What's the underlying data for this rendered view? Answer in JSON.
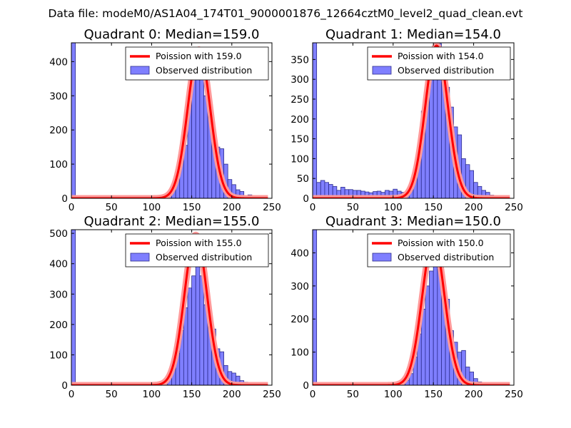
{
  "figure_title": "Data file: modeM0/AS1A04_174T01_9000001876_12664cztM0_level2_quad_clean.evt",
  "colors": {
    "bar_fill": "#7f7fff",
    "bar_stroke": "#2c2c8c",
    "poisson_line": "#ff0000",
    "poisson_glow": "#ff9a9a",
    "axes": "#000000"
  },
  "chart_data": [
    {
      "type": "bar",
      "panel": "Quadrant 0",
      "title": "Quadrant 0: Median=159.0",
      "median": 159.0,
      "xlim": [
        0,
        250
      ],
      "ylim": [
        0,
        455
      ],
      "xticks": [
        0,
        50,
        100,
        150,
        200,
        250
      ],
      "yticks": [
        0,
        100,
        200,
        300,
        400
      ],
      "bin_width": 5,
      "bins": [
        {
          "x": 0,
          "count": 455
        },
        {
          "x": 85,
          "count": 3
        },
        {
          "x": 90,
          "count": 5
        },
        {
          "x": 95,
          "count": 7
        },
        {
          "x": 100,
          "count": 4
        },
        {
          "x": 105,
          "count": 6
        },
        {
          "x": 110,
          "count": 5
        },
        {
          "x": 115,
          "count": 5
        },
        {
          "x": 120,
          "count": 8
        },
        {
          "x": 125,
          "count": 22
        },
        {
          "x": 130,
          "count": 75
        },
        {
          "x": 135,
          "count": 135
        },
        {
          "x": 140,
          "count": 155
        },
        {
          "x": 145,
          "count": 285
        },
        {
          "x": 150,
          "count": 360
        },
        {
          "x": 155,
          "count": 410
        },
        {
          "x": 160,
          "count": 385
        },
        {
          "x": 165,
          "count": 300
        },
        {
          "x": 170,
          "count": 270
        },
        {
          "x": 175,
          "count": 180
        },
        {
          "x": 180,
          "count": 150
        },
        {
          "x": 185,
          "count": 145
        },
        {
          "x": 190,
          "count": 100
        },
        {
          "x": 195,
          "count": 55
        },
        {
          "x": 200,
          "count": 40
        },
        {
          "x": 205,
          "count": 25
        },
        {
          "x": 210,
          "count": 20
        },
        {
          "x": 215,
          "count": 8
        },
        {
          "x": 220,
          "count": 10
        },
        {
          "x": 225,
          "count": 5
        },
        {
          "x": 230,
          "count": 3
        },
        {
          "x": 235,
          "count": 3
        }
      ],
      "curve": {
        "peak_x": 159,
        "peak_y": 435,
        "sigma": 14
      },
      "legend": {
        "line_label": "Poission with 159.0",
        "bar_label": "Observed distribution"
      }
    },
    {
      "type": "bar",
      "panel": "Quadrant 1",
      "title": "Quadrant 1: Median=154.0",
      "median": 154.0,
      "xlim": [
        0,
        250
      ],
      "ylim": [
        0,
        392
      ],
      "xticks": [
        0,
        50,
        100,
        150,
        200,
        250
      ],
      "yticks": [
        0,
        50,
        100,
        150,
        200,
        250,
        300,
        350
      ],
      "bin_width": 5,
      "bins": [
        {
          "x": 0,
          "count": 392
        },
        {
          "x": 5,
          "count": 40
        },
        {
          "x": 10,
          "count": 45
        },
        {
          "x": 15,
          "count": 40
        },
        {
          "x": 20,
          "count": 35
        },
        {
          "x": 25,
          "count": 30
        },
        {
          "x": 30,
          "count": 20
        },
        {
          "x": 35,
          "count": 28
        },
        {
          "x": 40,
          "count": 22
        },
        {
          "x": 45,
          "count": 22
        },
        {
          "x": 50,
          "count": 20
        },
        {
          "x": 55,
          "count": 20
        },
        {
          "x": 60,
          "count": 18
        },
        {
          "x": 65,
          "count": 16
        },
        {
          "x": 70,
          "count": 14
        },
        {
          "x": 75,
          "count": 17
        },
        {
          "x": 80,
          "count": 18
        },
        {
          "x": 85,
          "count": 15
        },
        {
          "x": 90,
          "count": 20
        },
        {
          "x": 95,
          "count": 18
        },
        {
          "x": 100,
          "count": 23
        },
        {
          "x": 105,
          "count": 18
        },
        {
          "x": 110,
          "count": 15
        },
        {
          "x": 115,
          "count": 15
        },
        {
          "x": 120,
          "count": 22
        },
        {
          "x": 125,
          "count": 65
        },
        {
          "x": 130,
          "count": 115
        },
        {
          "x": 135,
          "count": 220
        },
        {
          "x": 140,
          "count": 250
        },
        {
          "x": 145,
          "count": 300
        },
        {
          "x": 150,
          "count": 330
        },
        {
          "x": 155,
          "count": 390
        },
        {
          "x": 160,
          "count": 330
        },
        {
          "x": 165,
          "count": 280
        },
        {
          "x": 170,
          "count": 230
        },
        {
          "x": 175,
          "count": 180
        },
        {
          "x": 180,
          "count": 160
        },
        {
          "x": 185,
          "count": 100
        },
        {
          "x": 190,
          "count": 85
        },
        {
          "x": 195,
          "count": 70
        },
        {
          "x": 200,
          "count": 40
        },
        {
          "x": 205,
          "count": 30
        },
        {
          "x": 210,
          "count": 20
        },
        {
          "x": 215,
          "count": 15
        },
        {
          "x": 220,
          "count": 8
        },
        {
          "x": 225,
          "count": 5
        },
        {
          "x": 230,
          "count": 5
        },
        {
          "x": 235,
          "count": 3
        }
      ],
      "curve": {
        "peak_x": 154,
        "peak_y": 385,
        "sigma": 14
      },
      "legend": {
        "line_label": "Poission with 154.0",
        "bar_label": "Observed distribution"
      }
    },
    {
      "type": "bar",
      "panel": "Quadrant 2",
      "title": "Quadrant 2: Median=155.0",
      "median": 155.0,
      "xlim": [
        0,
        250
      ],
      "ylim": [
        0,
        512
      ],
      "xticks": [
        0,
        50,
        100,
        150,
        200,
        250
      ],
      "yticks": [
        0,
        100,
        200,
        300,
        400,
        500
      ],
      "bin_width": 5,
      "bins": [
        {
          "x": 0,
          "count": 512
        },
        {
          "x": 80,
          "count": 3
        },
        {
          "x": 85,
          "count": 4
        },
        {
          "x": 90,
          "count": 7
        },
        {
          "x": 95,
          "count": 5
        },
        {
          "x": 100,
          "count": 3
        },
        {
          "x": 105,
          "count": 6
        },
        {
          "x": 110,
          "count": 6
        },
        {
          "x": 115,
          "count": 7
        },
        {
          "x": 120,
          "count": 30
        },
        {
          "x": 125,
          "count": 55
        },
        {
          "x": 130,
          "count": 105
        },
        {
          "x": 135,
          "count": 180
        },
        {
          "x": 140,
          "count": 255
        },
        {
          "x": 145,
          "count": 320
        },
        {
          "x": 150,
          "count": 360
        },
        {
          "x": 155,
          "count": 450
        },
        {
          "x": 160,
          "count": 360
        },
        {
          "x": 165,
          "count": 265
        },
        {
          "x": 170,
          "count": 240
        },
        {
          "x": 175,
          "count": 185
        },
        {
          "x": 180,
          "count": 120
        },
        {
          "x": 185,
          "count": 110
        },
        {
          "x": 190,
          "count": 65
        },
        {
          "x": 195,
          "count": 45
        },
        {
          "x": 200,
          "count": 40
        },
        {
          "x": 205,
          "count": 30
        },
        {
          "x": 210,
          "count": 15
        },
        {
          "x": 215,
          "count": 10
        },
        {
          "x": 220,
          "count": 5
        },
        {
          "x": 225,
          "count": 3
        }
      ],
      "curve": {
        "peak_x": 155,
        "peak_y": 495,
        "sigma": 14
      },
      "legend": {
        "line_label": "Poission with 155.0",
        "bar_label": "Observed distribution"
      }
    },
    {
      "type": "bar",
      "panel": "Quadrant 3",
      "title": "Quadrant 3: Median=150.0",
      "median": 150.0,
      "xlim": [
        0,
        250
      ],
      "ylim": [
        0,
        470
      ],
      "xticks": [
        0,
        50,
        100,
        150,
        200,
        250
      ],
      "yticks": [
        0,
        100,
        200,
        300,
        400
      ],
      "bin_width": 5,
      "bins": [
        {
          "x": 0,
          "count": 470
        },
        {
          "x": 75,
          "count": 5
        },
        {
          "x": 80,
          "count": 3
        },
        {
          "x": 90,
          "count": 4
        },
        {
          "x": 95,
          "count": 3
        },
        {
          "x": 100,
          "count": 5
        },
        {
          "x": 105,
          "count": 3
        },
        {
          "x": 110,
          "count": 6
        },
        {
          "x": 115,
          "count": 15
        },
        {
          "x": 120,
          "count": 35
        },
        {
          "x": 125,
          "count": 85
        },
        {
          "x": 130,
          "count": 155
        },
        {
          "x": 135,
          "count": 230
        },
        {
          "x": 140,
          "count": 300
        },
        {
          "x": 145,
          "count": 345
        },
        {
          "x": 150,
          "count": 445
        },
        {
          "x": 155,
          "count": 380
        },
        {
          "x": 160,
          "count": 300
        },
        {
          "x": 165,
          "count": 260
        },
        {
          "x": 170,
          "count": 165
        },
        {
          "x": 175,
          "count": 130
        },
        {
          "x": 180,
          "count": 100
        },
        {
          "x": 185,
          "count": 105
        },
        {
          "x": 190,
          "count": 55
        },
        {
          "x": 195,
          "count": 40
        },
        {
          "x": 200,
          "count": 20
        },
        {
          "x": 205,
          "count": 10
        },
        {
          "x": 210,
          "count": 8
        },
        {
          "x": 215,
          "count": 5
        },
        {
          "x": 220,
          "count": 3
        }
      ],
      "curve": {
        "peak_x": 150,
        "peak_y": 440,
        "sigma": 14
      },
      "legend": {
        "line_label": "Poission with 150.0",
        "bar_label": "Observed distribution"
      }
    }
  ]
}
